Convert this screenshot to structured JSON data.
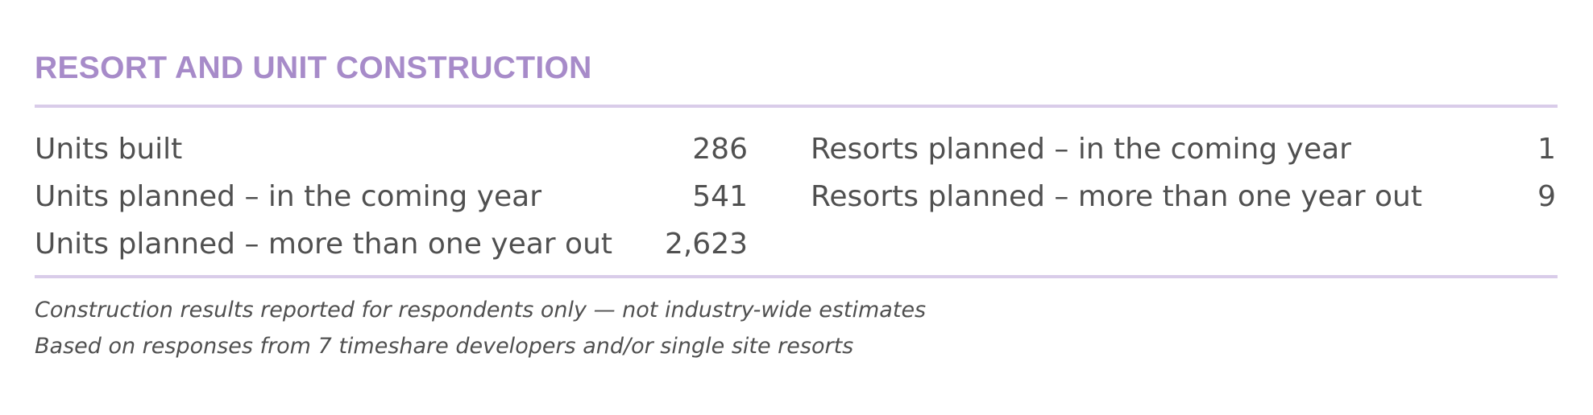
{
  "section": {
    "title": "RESORT AND UNIT CONSTRUCTION"
  },
  "units": [
    {
      "label": "Units built",
      "value": "286"
    },
    {
      "label": "Units planned – in the coming year",
      "value": "541"
    },
    {
      "label": "Units planned – more than one year out",
      "value": "2,623"
    }
  ],
  "resorts": [
    {
      "label": "Resorts planned – in the coming year",
      "value": "1"
    },
    {
      "label": "Resorts planned – more than one year out",
      "value": "9"
    }
  ],
  "notes": [
    "Construction results reported for respondents only — not industry-wide estimates",
    "Based on responses from 7 timeshare developers and/or single site resorts"
  ],
  "colors": {
    "title": "#a78bc9",
    "rule": "#d9cce9",
    "text": "#505050"
  }
}
